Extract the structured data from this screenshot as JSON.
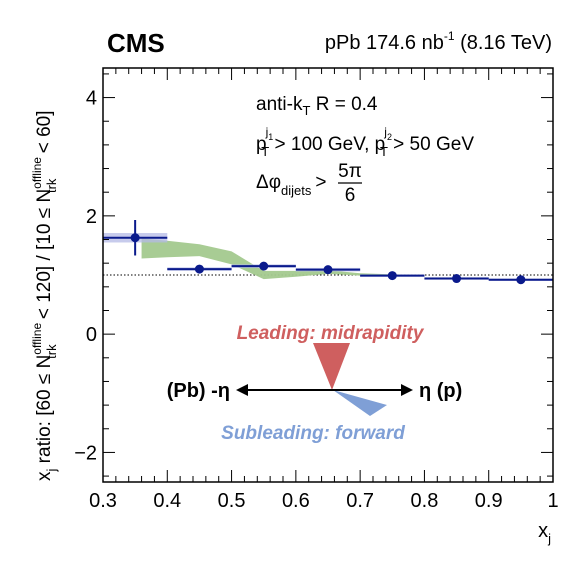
{
  "header": {
    "experiment": "CMS",
    "lumi_prefix": "pPb 174.6 nb",
    "lumi_exp": "-1",
    "lumi_suffix": " (8.16 TeV)"
  },
  "annotations": {
    "algo_a": "anti-k",
    "algo_sub": "T",
    "algo_b": " R = 0.4",
    "pt_p1": "p",
    "pt_sub1": "T",
    "pt_sup1": "j",
    "pt_supsub1": "1",
    "pt_mid": " > 100 GeV, p",
    "pt_sub2": "T",
    "pt_sup2": "j",
    "pt_supsub2": "2",
    "pt_end": " > 50 GeV",
    "dphi_sym": "Δφ",
    "dphi_sub": "dijets",
    "dphi_gt": ">",
    "dphi_num": "5π",
    "dphi_den": "6"
  },
  "diagram": {
    "leading": "Leading: midrapidity",
    "subleading": "Subleading: forward",
    "left": "(Pb) -η",
    "right": "η (p)",
    "leading_color": "#cf5f5f",
    "subleading_color": "#7f9fd6"
  },
  "chart_data": {
    "type": "scatter",
    "xlabel": "x",
    "xlabel_sub": "j",
    "ylabel_a": "x",
    "ylabel_a_sub": "j",
    "ylabel_b": " ratio: [60 ≤ N",
    "ylabel_sup1": "offline",
    "ylabel_sub1": "trk",
    "ylabel_c": " < 120] / [10 ≤ N",
    "ylabel_sup2": "offline",
    "ylabel_sub2": "trk",
    "ylabel_d": " < 60]",
    "xlim": [
      0.3,
      1.0
    ],
    "ylim": [
      -2.5,
      4.5
    ],
    "x_ticks": [
      "0.3",
      "0.4",
      "0.5",
      "0.6",
      "0.7",
      "0.8",
      "0.9",
      "1"
    ],
    "y_ticks": [
      "−2",
      "0",
      "2",
      "4"
    ],
    "reference_line": 1.0,
    "marker_color": "#0a1a8c",
    "syst_color": "#b4b9e6",
    "band_color": "#a3c98e",
    "points": [
      {
        "x": 0.35,
        "y": 1.63,
        "xlo": 0.3,
        "xhi": 0.4,
        "ylo": 1.33,
        "yhi": 1.93,
        "sys_lo": 1.55,
        "sys_hi": 1.71
      },
      {
        "x": 0.45,
        "y": 1.1,
        "xlo": 0.4,
        "xhi": 0.5,
        "ylo": 1.07,
        "yhi": 1.13,
        "sys_lo": 1.07,
        "sys_hi": 1.13
      },
      {
        "x": 0.55,
        "y": 1.15,
        "xlo": 0.5,
        "xhi": 0.6,
        "ylo": 1.12,
        "yhi": 1.18,
        "sys_lo": 1.12,
        "sys_hi": 1.18
      },
      {
        "x": 0.65,
        "y": 1.09,
        "xlo": 0.6,
        "xhi": 0.7,
        "ylo": 1.06,
        "yhi": 1.12,
        "sys_lo": 1.06,
        "sys_hi": 1.12
      },
      {
        "x": 0.75,
        "y": 0.99,
        "xlo": 0.7,
        "xhi": 0.8,
        "ylo": 0.97,
        "yhi": 1.01,
        "sys_lo": 0.97,
        "sys_hi": 1.01
      },
      {
        "x": 0.85,
        "y": 0.94,
        "xlo": 0.8,
        "xhi": 0.9,
        "ylo": 0.92,
        "yhi": 0.96,
        "sys_lo": 0.92,
        "sys_hi": 0.96
      },
      {
        "x": 0.95,
        "y": 0.92,
        "xlo": 0.9,
        "xhi": 1.0,
        "ylo": 0.9,
        "yhi": 0.94,
        "sys_lo": 0.9,
        "sys_hi": 0.94
      }
    ],
    "band": {
      "x": [
        0.36,
        0.4,
        0.45,
        0.5,
        0.55,
        0.6,
        0.65,
        0.7,
        0.75
      ],
      "lo": [
        1.28,
        1.3,
        1.32,
        1.18,
        0.93,
        0.97,
        1.02,
        0.99,
        0.98
      ],
      "hi": [
        1.62,
        1.58,
        1.52,
        1.4,
        1.07,
        1.07,
        1.08,
        1.03,
        1.01
      ]
    }
  }
}
